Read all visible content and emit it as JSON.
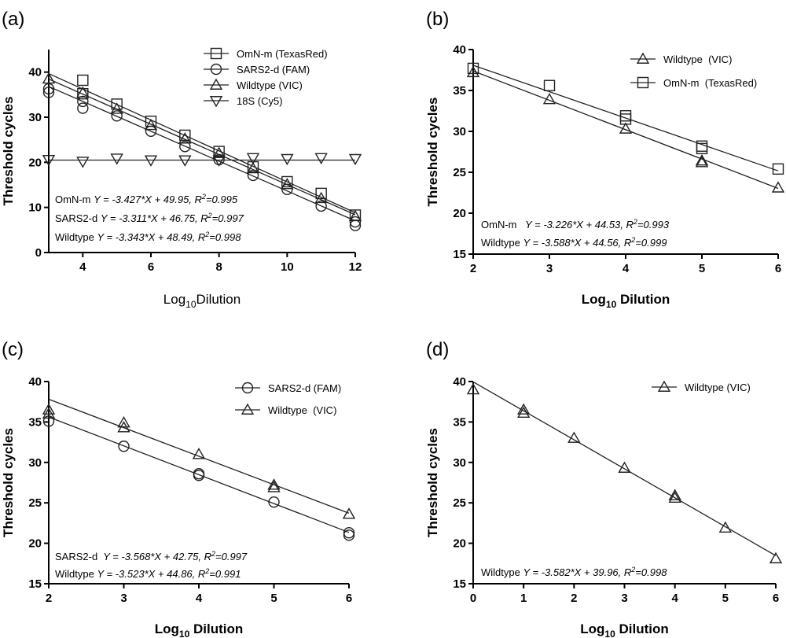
{
  "figure": {
    "panels": [
      {
        "label": "(a)"
      },
      {
        "label": "(b)"
      },
      {
        "label": "(c)"
      },
      {
        "label": "(d)"
      }
    ]
  },
  "chart_data": [
    {
      "type": "scatter",
      "panel": "(a)",
      "xlabel": "Log10Dilution",
      "ylabel": "Threshold cycles",
      "xlim": [
        3,
        12
      ],
      "ylim": [
        0,
        45
      ],
      "xticks": [
        4,
        6,
        8,
        10,
        12
      ],
      "yticks": [
        0,
        10,
        20,
        30,
        40
      ],
      "legend_position": "top-right",
      "series": [
        {
          "name": "OmN-m (TexasRed)",
          "marker": "square",
          "x": [
            4,
            4,
            5,
            6,
            7,
            8,
            9,
            10,
            11,
            12
          ],
          "y": [
            38.2,
            35.2,
            32.9,
            29.1,
            26.0,
            22.4,
            19.0,
            15.7,
            13.1,
            8.3
          ],
          "fit": {
            "slope": -3.427,
            "intercept": 49.95
          }
        },
        {
          "name": "SARS2-d (FAM)",
          "marker": "circle",
          "x": [
            3,
            3,
            4,
            4,
            5,
            6,
            7,
            8,
            9,
            10,
            11,
            12,
            12
          ],
          "y": [
            36.3,
            35.5,
            32.0,
            33.5,
            30.3,
            26.9,
            23.5,
            20.6,
            17.1,
            14.0,
            10.3,
            6.8,
            6.0
          ],
          "fit": {
            "slope": -3.311,
            "intercept": 46.75
          }
        },
        {
          "name": "Wildtype (VIC)",
          "marker": "triangle-up",
          "x": [
            3,
            4,
            5,
            6,
            7,
            8,
            9,
            10,
            11,
            12
          ],
          "y": [
            38.5,
            35.4,
            31.8,
            28.2,
            25.2,
            22.0,
            18.6,
            15.1,
            12.0,
            8.0
          ],
          "fit": {
            "slope": -3.343,
            "intercept": 48.49
          }
        },
        {
          "name": "18S (Cy5)",
          "marker": "triangle-down",
          "x": [
            3,
            4,
            5,
            6,
            7,
            8,
            9,
            10,
            11,
            12
          ],
          "y": [
            20.6,
            20.2,
            20.9,
            20.5,
            20.5,
            20.5,
            21.0,
            20.8,
            21.0,
            20.8
          ],
          "fit": {
            "slope": 0,
            "intercept": 20.5
          }
        }
      ],
      "equations": [
        {
          "name": "OmN-m",
          "eq": "Y = -3.427*X + 49.95",
          "r2_label": ", R",
          "r2_value": "=0.995"
        },
        {
          "name": "SARS2-d",
          "eq": "Y = -3.311*X + 46.75",
          "r2_label": ", R",
          "r2_value": "=0.997"
        },
        {
          "name": "Wildtype",
          "eq": "Y = -3.343*X + 48.49",
          "r2_label": ", R",
          "r2_value": "=0.998"
        }
      ]
    },
    {
      "type": "scatter",
      "panel": "(b)",
      "xlabel": "Log10 Dilution",
      "ylabel": "Threshold cycles",
      "xlim": [
        2,
        6
      ],
      "ylim": [
        15,
        40
      ],
      "xticks": [
        2,
        3,
        4,
        5,
        6
      ],
      "yticks": [
        15,
        20,
        25,
        30,
        35,
        40
      ],
      "legend_position": "top-right",
      "series": [
        {
          "name": "Wildtype  (VIC)",
          "marker": "triangle-up",
          "x": [
            2,
            3,
            4,
            5,
            5,
            6
          ],
          "y": [
            37.2,
            33.9,
            30.3,
            26.4,
            26.2,
            23.1
          ],
          "fit": {
            "slope": -3.588,
            "intercept": 44.56
          }
        },
        {
          "name": "OmN-m  (TexasRed)",
          "marker": "square",
          "x": [
            2,
            3,
            4,
            4,
            5,
            5,
            6
          ],
          "y": [
            37.7,
            35.6,
            31.9,
            31.5,
            28.2,
            27.9,
            25.4
          ],
          "fit": {
            "slope": -3.226,
            "intercept": 44.53
          }
        }
      ],
      "equations": [
        {
          "name": "OmN-m",
          "eq": "  Y = -3.226*X + 44.53",
          "r2_label": ", R",
          "r2_value": "=0.993"
        },
        {
          "name": "Wildtype",
          "eq": "Y = -3.588*X + 44.56",
          "r2_label": ", R",
          "r2_value": "=0.999"
        }
      ]
    },
    {
      "type": "scatter",
      "panel": "(c)",
      "xlabel": "Log10 Dilution",
      "ylabel": "Threshold cycles",
      "xlim": [
        2,
        6
      ],
      "ylim": [
        15,
        40
      ],
      "xticks": [
        2,
        3,
        4,
        5,
        6
      ],
      "yticks": [
        15,
        20,
        25,
        30,
        35,
        40
      ],
      "legend_position": "top-right",
      "series": [
        {
          "name": "SARS2-d (FAM)",
          "marker": "circle",
          "x": [
            2,
            3,
            4,
            4,
            5,
            6,
            6
          ],
          "y": [
            35.1,
            32.0,
            28.6,
            28.4,
            25.1,
            21.3,
            21.0
          ],
          "fit": {
            "slope": -3.568,
            "intercept": 42.75
          }
        },
        {
          "name": "Wildtype  (VIC)",
          "marker": "triangle-up",
          "x": [
            2,
            2,
            3,
            3,
            4,
            5,
            5,
            6
          ],
          "y": [
            36.5,
            36.0,
            34.9,
            34.3,
            31.0,
            27.2,
            26.9,
            23.6
          ],
          "fit": {
            "slope": -3.523,
            "intercept": 44.86
          }
        }
      ],
      "equations": [
        {
          "name": "SARS2-d",
          "eq": " Y = -3.568*X + 42.75",
          "r2_label": ", R",
          "r2_value": "=0.997"
        },
        {
          "name": "Wildtype",
          "eq": "Y = -3.523*X + 44.86",
          "r2_label": ", R",
          "r2_value": "=0.991"
        }
      ]
    },
    {
      "type": "scatter",
      "panel": "(d)",
      "xlabel": "Log10 Dilution",
      "ylabel": "Threshold cycles",
      "xlim": [
        0,
        6
      ],
      "ylim": [
        15,
        40
      ],
      "xticks": [
        0,
        1,
        2,
        3,
        4,
        5,
        6
      ],
      "yticks": [
        15,
        20,
        25,
        30,
        35,
        40
      ],
      "legend_position": "top-right",
      "series": [
        {
          "name": "Wildtype (VIC)",
          "marker": "triangle-up",
          "x": [
            0,
            1,
            1,
            2,
            3,
            4,
            4,
            5,
            6
          ],
          "y": [
            39.0,
            36.5,
            36.1,
            33.0,
            29.3,
            25.9,
            25.6,
            21.9,
            18.1
          ],
          "fit": {
            "slope": -3.582,
            "intercept": 39.96
          }
        }
      ],
      "equations": [
        {
          "name": "Wildtype",
          "eq": "Y = -3.582*X + 39.96",
          "r2_label": ", R",
          "r2_value": "=0.998"
        }
      ]
    }
  ]
}
